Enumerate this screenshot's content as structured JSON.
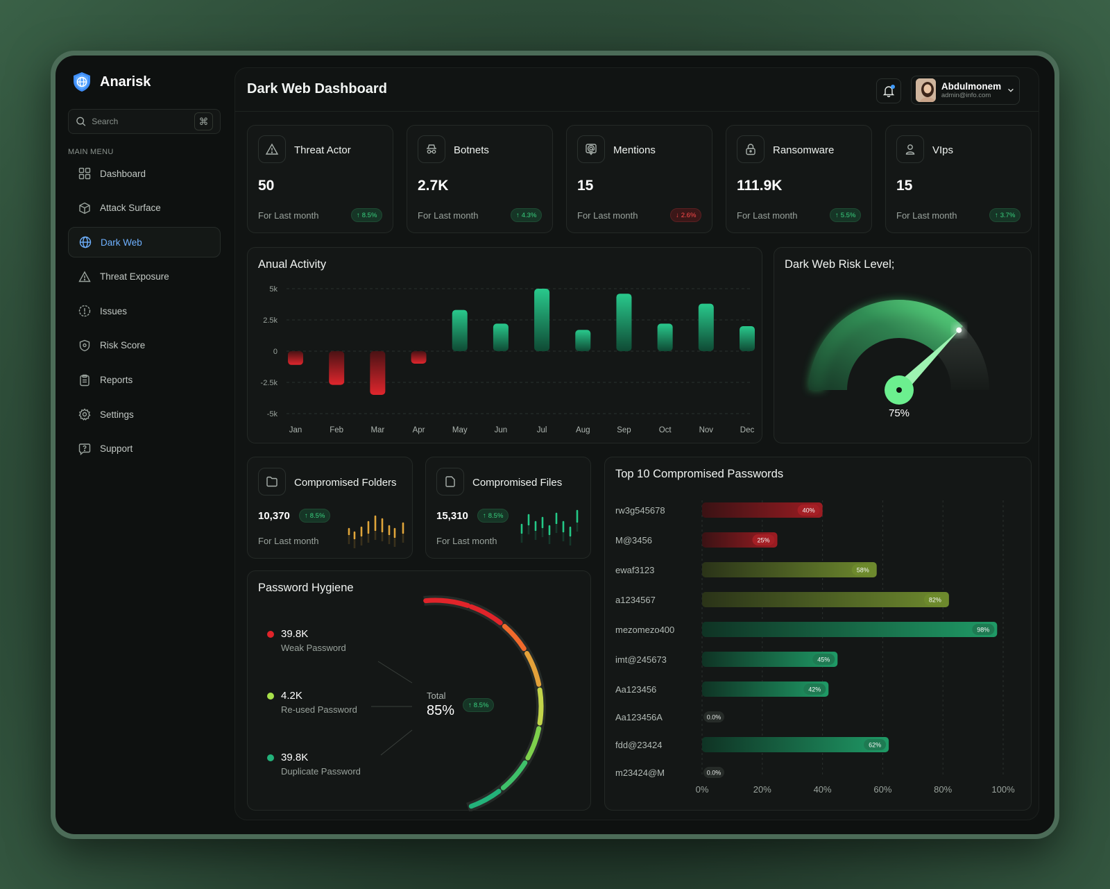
{
  "app": {
    "name": "Anarisk"
  },
  "search": {
    "placeholder": "Search",
    "shortcut": "⌘"
  },
  "sidebar": {
    "section_label": "MAIN MENU",
    "items": [
      {
        "label": "Dashboard",
        "icon": "grid-icon",
        "active": false
      },
      {
        "label": "Attack Surface",
        "icon": "cube-icon",
        "active": false
      },
      {
        "label": "Dark Web",
        "icon": "globe-icon",
        "active": true
      },
      {
        "label": "Threat Exposure",
        "icon": "warning-icon",
        "active": false
      },
      {
        "label": "Issues",
        "icon": "alert-circle-icon",
        "active": false
      },
      {
        "label": "Risk Score",
        "icon": "shield-icon",
        "active": false
      },
      {
        "label": "Reports",
        "icon": "clipboard-icon",
        "active": false
      },
      {
        "label": "Settings",
        "icon": "gear-icon",
        "active": false
      },
      {
        "label": "Support",
        "icon": "chat-question-icon",
        "active": false
      }
    ]
  },
  "header": {
    "title": "Dark Web Dashboard",
    "user": {
      "name": "Abdulmonem",
      "email": "admin@info.com"
    }
  },
  "stats": [
    {
      "title": "Threat Actor",
      "value": "50",
      "sub": "For Last month",
      "change": "8.5%",
      "trend": "up",
      "icon": "warning-triangle-icon"
    },
    {
      "title": "Botnets",
      "value": "2.7K",
      "sub": "For Last month",
      "change": "4.3%",
      "trend": "up",
      "icon": "incognito-icon"
    },
    {
      "title": "Mentions",
      "value": "15",
      "sub": "For Last month",
      "change": "2.6%",
      "trend": "down",
      "icon": "at-sign-icon"
    },
    {
      "title": "Ransomware",
      "value": "111.9K",
      "sub": "For Last month",
      "change": "5.5%",
      "trend": "up",
      "icon": "lock-icon"
    },
    {
      "title": "VIps",
      "value": "15",
      "sub": "For Last month",
      "change": "3.7%",
      "trend": "up",
      "icon": "user-icon"
    }
  ],
  "annual": {
    "title": "Anual Activity",
    "chart_data": {
      "type": "bar",
      "categories": [
        "Jan",
        "Feb",
        "Mar",
        "Apr",
        "May",
        "Jun",
        "Jul",
        "Aug",
        "Sep",
        "Oct",
        "Nov",
        "Dec"
      ],
      "values": [
        -1100,
        -2700,
        -3500,
        -1000,
        3300,
        2200,
        5000,
        1700,
        4600,
        2200,
        3800,
        2000
      ],
      "ylim": [
        -5000,
        5000
      ],
      "y_ticks": [
        5000,
        2500,
        0,
        -2500,
        -5000
      ],
      "y_tick_labels": [
        "5k",
        "2.5k",
        "0",
        "-2.5k",
        "-5k"
      ],
      "colors": {
        "positive": "#1fa070",
        "negative": "#c0262b"
      },
      "grid": true
    }
  },
  "risk": {
    "title": "Dark Web Risk Level;",
    "value": 75,
    "label": "75%"
  },
  "compromised": [
    {
      "title": "Compromised Folders",
      "value": "10,370",
      "change": "8.5%",
      "sub": "For Last month",
      "icon": "folder-icon",
      "spark_color": "#e0a53a"
    },
    {
      "title": "Compromised Files",
      "value": "15,310",
      "change": "8.5%",
      "sub": "For Last month",
      "icon": "file-icon",
      "spark_color": "#24c886"
    }
  ],
  "hygiene": {
    "title": "Password Hygiene",
    "items": [
      {
        "value": "39.8K",
        "label": "Weak Password",
        "color": "#e0242a"
      },
      {
        "value": "4.2K",
        "label": "Re-used Password",
        "color": "#a7e04a"
      },
      {
        "value": "39.8K",
        "label": "Duplicate Password",
        "color": "#23b27a"
      }
    ],
    "total_label": "Total",
    "total_value": "85%",
    "change": "8.5%"
  },
  "passwords": {
    "title": "Top 10 Compromised Passwords",
    "chart_data": {
      "type": "bar",
      "orientation": "horizontal",
      "categories": [
        "rw3g545678",
        "M@3456",
        "ewaf3123",
        "a1234567",
        "mezomezo400",
        "imt@245673",
        "Aa123456",
        "Aa123456A",
        "fdd@23424",
        "m23424@M"
      ],
      "values": [
        40,
        25,
        58,
        82,
        98,
        45,
        42,
        0,
        62,
        0
      ],
      "value_labels": [
        "40%",
        "25%",
        "58%",
        "82%",
        "98%",
        "45%",
        "42%",
        "0.0%",
        "62%",
        "0.0%"
      ],
      "xlim": [
        0,
        100
      ],
      "x_tick_labels": [
        "0%",
        "20%",
        "40%",
        "60%",
        "80%",
        "100%"
      ],
      "grid": true
    }
  }
}
